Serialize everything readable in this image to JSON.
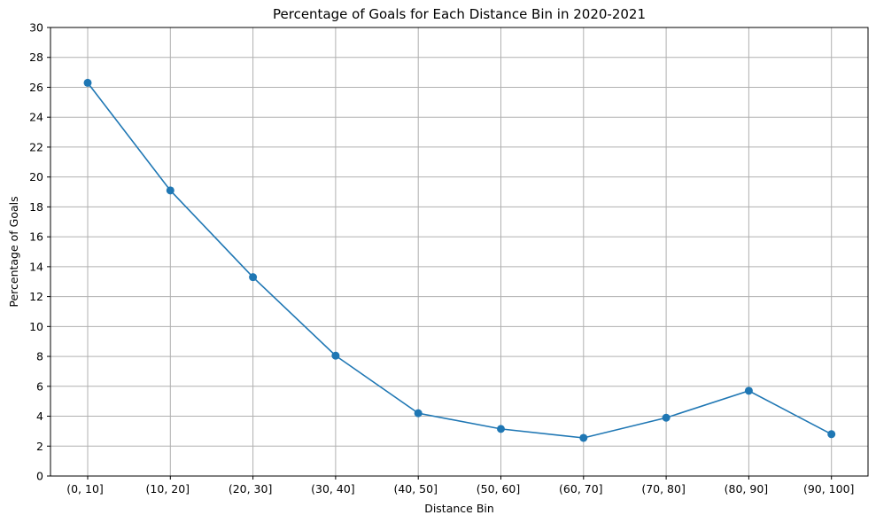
{
  "chart_data": {
    "type": "line",
    "title": "Percentage of Goals for Each Distance Bin in 2020-2021",
    "xlabel": "Distance Bin",
    "ylabel": "Percentage of Goals",
    "categories": [
      "(0, 10]",
      "(10, 20]",
      "(20, 30]",
      "(30, 40]",
      "(40, 50]",
      "(50, 60]",
      "(60, 70]",
      "(70, 80]",
      "(80, 90]",
      "(90, 100]"
    ],
    "series": [
      {
        "values": [
          26.3,
          19.1,
          13.3,
          8.05,
          4.2,
          3.15,
          2.55,
          3.9,
          5.7,
          2.8
        ],
        "color": "#1f77b4",
        "marker": "circle"
      }
    ],
    "ylim": [
      0,
      30
    ],
    "yticks": [
      0,
      2,
      4,
      6,
      8,
      10,
      12,
      14,
      16,
      18,
      20,
      22,
      24,
      26,
      28,
      30
    ],
    "grid": true
  }
}
